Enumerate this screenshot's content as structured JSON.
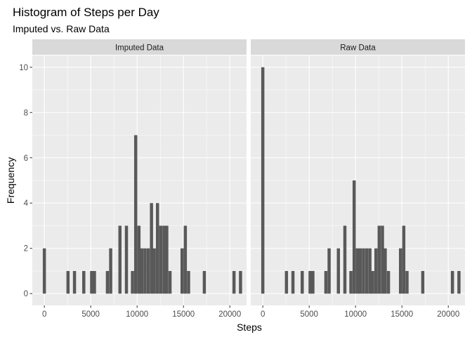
{
  "chart_data": {
    "type": "bar",
    "title": "Histogram of Steps per Day",
    "subtitle": "Imputed vs. Raw Data",
    "xlabel": "Steps",
    "ylabel": "Frequency",
    "xlim": [
      -1300,
      21800
    ],
    "ylim": [
      -0.52,
      10.52
    ],
    "bin_width": 340,
    "x_ticks": [
      0,
      5000,
      10000,
      15000,
      20000
    ],
    "x_tick_labels": [
      "0",
      "5000",
      "10000",
      "15000",
      "20000"
    ],
    "y_ticks": [
      0,
      2,
      4,
      6,
      8,
      10
    ],
    "y_tick_labels": [
      "0",
      "2",
      "4",
      "6",
      "8",
      "10"
    ],
    "grid": true,
    "panel_background": "#ebebeb",
    "strip_background": "#d9d9d9",
    "bar_color": "#595959",
    "panels": [
      {
        "name": "Imputed Data",
        "bins": [
          {
            "x": 0,
            "count": 2
          },
          {
            "x": 2550,
            "count": 1
          },
          {
            "x": 3250,
            "count": 1
          },
          {
            "x": 4250,
            "count": 1
          },
          {
            "x": 5100,
            "count": 1
          },
          {
            "x": 5400,
            "count": 1
          },
          {
            "x": 6800,
            "count": 1
          },
          {
            "x": 7150,
            "count": 2
          },
          {
            "x": 8150,
            "count": 3
          },
          {
            "x": 8850,
            "count": 3
          },
          {
            "x": 9500,
            "count": 1
          },
          {
            "x": 9850,
            "count": 7
          },
          {
            "x": 10200,
            "count": 3
          },
          {
            "x": 10500,
            "count": 2
          },
          {
            "x": 10850,
            "count": 2
          },
          {
            "x": 11200,
            "count": 2
          },
          {
            "x": 11550,
            "count": 4
          },
          {
            "x": 11850,
            "count": 2
          },
          {
            "x": 12200,
            "count": 4
          },
          {
            "x": 12550,
            "count": 3
          },
          {
            "x": 12900,
            "count": 3
          },
          {
            "x": 13200,
            "count": 3
          },
          {
            "x": 13550,
            "count": 1
          },
          {
            "x": 14850,
            "count": 2
          },
          {
            "x": 15200,
            "count": 3
          },
          {
            "x": 15550,
            "count": 1
          },
          {
            "x": 17250,
            "count": 1
          },
          {
            "x": 20450,
            "count": 1
          },
          {
            "x": 21150,
            "count": 1
          }
        ]
      },
      {
        "name": "Raw Data",
        "bins": [
          {
            "x": 0,
            "count": 10
          },
          {
            "x": 2550,
            "count": 1
          },
          {
            "x": 3250,
            "count": 1
          },
          {
            "x": 4250,
            "count": 1
          },
          {
            "x": 5100,
            "count": 1
          },
          {
            "x": 5400,
            "count": 1
          },
          {
            "x": 6800,
            "count": 1
          },
          {
            "x": 7150,
            "count": 2
          },
          {
            "x": 8150,
            "count": 2
          },
          {
            "x": 8850,
            "count": 3
          },
          {
            "x": 9500,
            "count": 1
          },
          {
            "x": 9850,
            "count": 5
          },
          {
            "x": 10200,
            "count": 2
          },
          {
            "x": 10500,
            "count": 2
          },
          {
            "x": 10850,
            "count": 2
          },
          {
            "x": 11200,
            "count": 2
          },
          {
            "x": 11550,
            "count": 2
          },
          {
            "x": 11850,
            "count": 1
          },
          {
            "x": 12200,
            "count": 2
          },
          {
            "x": 12550,
            "count": 3
          },
          {
            "x": 12900,
            "count": 3
          },
          {
            "x": 13200,
            "count": 2
          },
          {
            "x": 13550,
            "count": 1
          },
          {
            "x": 14850,
            "count": 2
          },
          {
            "x": 15200,
            "count": 3
          },
          {
            "x": 15550,
            "count": 1
          },
          {
            "x": 17250,
            "count": 1
          },
          {
            "x": 20450,
            "count": 1
          },
          {
            "x": 21150,
            "count": 1
          }
        ]
      }
    ]
  }
}
